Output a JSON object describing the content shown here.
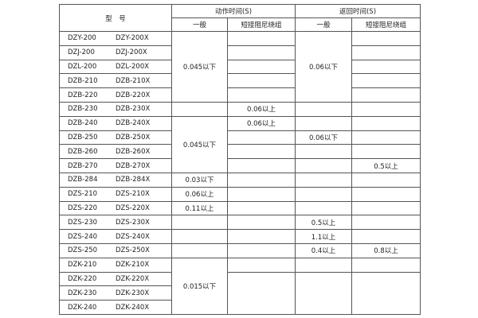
{
  "header": {
    "model": "型　号",
    "action_time": "动作时间(S)",
    "return_time": "返回时间(S)",
    "general": "一般",
    "short_damping": "短接阻尼绕组"
  },
  "models": [
    [
      "DZY-200",
      "DZY-200X"
    ],
    [
      "DZJ-200",
      "DZJ-200X"
    ],
    [
      "DZL-200",
      "DZL-200X"
    ],
    [
      "DZB-210",
      "DZB-210X"
    ],
    [
      "DZB-220",
      "DZB-220X"
    ],
    [
      "DZB-230",
      "DZB-230X"
    ],
    [
      "DZB-240",
      "DZB-240X"
    ],
    [
      "DZB-250",
      "DZB-250X"
    ],
    [
      "DZB-260",
      "DZB-260X"
    ],
    [
      "DZB-270",
      "DZB-270X"
    ],
    [
      "DZB-284",
      "DZB-284X"
    ],
    [
      "DZS-210",
      "DZS-210X"
    ],
    [
      "DZS-220",
      "DZS-220X"
    ],
    [
      "DZS-230",
      "DZS-230X"
    ],
    [
      "DZS-240",
      "DZS-240X"
    ],
    [
      "DZS-250",
      "DZS-250X"
    ],
    [
      "DZK-210",
      "DZK-210X"
    ],
    [
      "DZK-220",
      "DZK-220X"
    ],
    [
      "DZK-230",
      "DZK-230X"
    ],
    [
      "DZK-240",
      "DZK-240X"
    ]
  ],
  "columns": [
    {
      "name": "action-general",
      "segments": [
        {
          "rows": 5,
          "text": "0.045以下"
        },
        {
          "rows": 1,
          "text": ""
        },
        {
          "rows": 4,
          "text": "0.045以下"
        },
        {
          "rows": 1,
          "text": "0.03以下"
        },
        {
          "rows": 1,
          "text": "0.06以上"
        },
        {
          "rows": 1,
          "text": "0.11以上"
        },
        {
          "rows": 1,
          "text": ""
        },
        {
          "rows": 1,
          "text": ""
        },
        {
          "rows": 1,
          "text": ""
        },
        {
          "rows": 4,
          "text": "0.015以下"
        }
      ]
    },
    {
      "name": "action-short-damping",
      "segments": [
        {
          "rows": 1,
          "text": ""
        },
        {
          "rows": 1,
          "text": ""
        },
        {
          "rows": 1,
          "text": ""
        },
        {
          "rows": 1,
          "text": ""
        },
        {
          "rows": 1,
          "text": ""
        },
        {
          "rows": 1,
          "text": "0.06以上"
        },
        {
          "rows": 1,
          "text": "0.06以上"
        },
        {
          "rows": 1,
          "text": ""
        },
        {
          "rows": 1,
          "text": ""
        },
        {
          "rows": 1,
          "text": ""
        },
        {
          "rows": 1,
          "text": ""
        },
        {
          "rows": 1,
          "text": ""
        },
        {
          "rows": 1,
          "text": ""
        },
        {
          "rows": 1,
          "text": ""
        },
        {
          "rows": 1,
          "text": ""
        },
        {
          "rows": 1,
          "text": ""
        },
        {
          "rows": 1,
          "text": ""
        },
        {
          "rows": 3,
          "text": ""
        }
      ]
    },
    {
      "name": "return-general",
      "segments": [
        {
          "rows": 5,
          "text": "0.06以下"
        },
        {
          "rows": 1,
          "text": ""
        },
        {
          "rows": 1,
          "text": ""
        },
        {
          "rows": 1,
          "text": "0.06以下"
        },
        {
          "rows": 1,
          "text": ""
        },
        {
          "rows": 1,
          "text": ""
        },
        {
          "rows": 1,
          "text": ""
        },
        {
          "rows": 1,
          "text": ""
        },
        {
          "rows": 1,
          "text": ""
        },
        {
          "rows": 1,
          "text": "0.5以上"
        },
        {
          "rows": 1,
          "text": "1.1以上"
        },
        {
          "rows": 1,
          "text": "0.4以上"
        },
        {
          "rows": 1,
          "text": ""
        },
        {
          "rows": 3,
          "text": ""
        }
      ]
    },
    {
      "name": "return-short-damping",
      "segments": [
        {
          "rows": 1,
          "text": ""
        },
        {
          "rows": 1,
          "text": ""
        },
        {
          "rows": 1,
          "text": ""
        },
        {
          "rows": 1,
          "text": ""
        },
        {
          "rows": 1,
          "text": ""
        },
        {
          "rows": 1,
          "text": ""
        },
        {
          "rows": 1,
          "text": ""
        },
        {
          "rows": 1,
          "text": ""
        },
        {
          "rows": 1,
          "text": ""
        },
        {
          "rows": 1,
          "text": "0.5以上"
        },
        {
          "rows": 1,
          "text": ""
        },
        {
          "rows": 1,
          "text": ""
        },
        {
          "rows": 1,
          "text": ""
        },
        {
          "rows": 1,
          "text": ""
        },
        {
          "rows": 1,
          "text": ""
        },
        {
          "rows": 1,
          "text": "0.8以上"
        },
        {
          "rows": 1,
          "text": ""
        },
        {
          "rows": 3,
          "text": ""
        }
      ]
    }
  ]
}
